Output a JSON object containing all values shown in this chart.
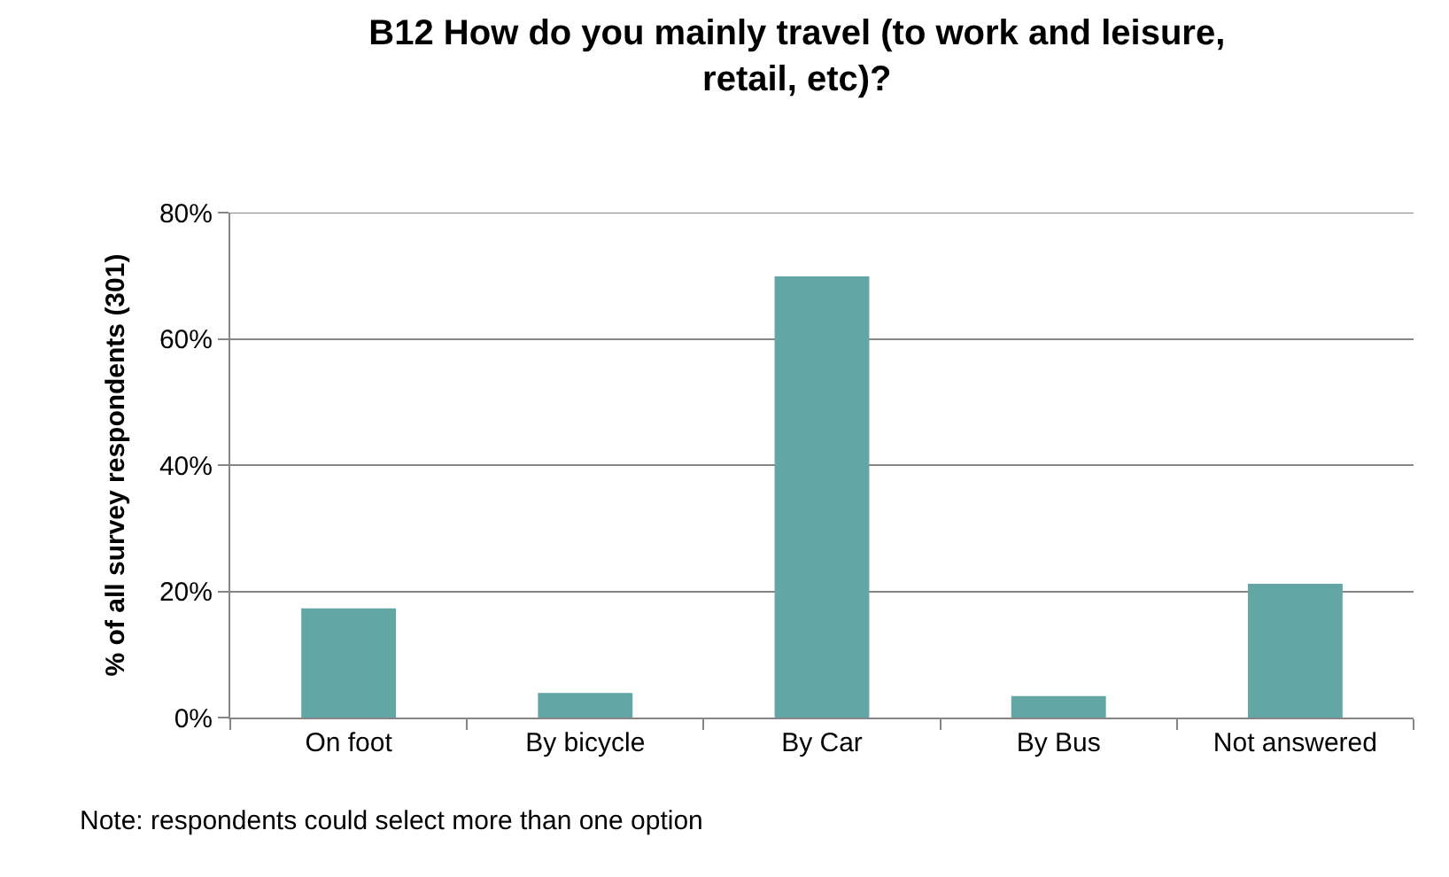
{
  "chart_data": {
    "type": "bar",
    "title": "B12 How do you mainly travel (to work and leisure,\nretail, etc)?",
    "ylabel": "% of all survey respondents (301)",
    "categories": [
      "On foot",
      "By bicycle",
      "By Car",
      "By Bus",
      "Not answered"
    ],
    "values": [
      17.3,
      3.9,
      69.9,
      3.4,
      21.2
    ],
    "color": "#63a6a6",
    "ylim": [
      0,
      80
    ],
    "yticks": [
      {
        "value": 0,
        "label": "0%"
      },
      {
        "value": 20,
        "label": "20%"
      },
      {
        "value": 40,
        "label": "40%"
      },
      {
        "value": 60,
        "label": "60%"
      },
      {
        "value": 80,
        "label": "80%"
      }
    ],
    "grid": "y",
    "annotations": [
      "Note: respondents could select more than one option"
    ]
  }
}
